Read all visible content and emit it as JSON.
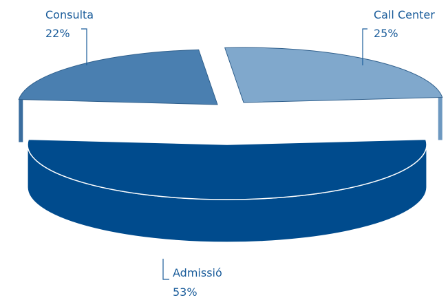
{
  "chart_data": {
    "type": "pie",
    "style": "3d-exploded",
    "slices": [
      {
        "label": "Consulta",
        "value": 22,
        "value_label": "22%",
        "color": "#4a7fb0",
        "side_color": "#3a6d9e"
      },
      {
        "label": "Call Center",
        "value": 25,
        "value_label": "25%",
        "color": "#80a8cc",
        "side_color": "#6d98c0"
      },
      {
        "label": "Admissió",
        "value": 53,
        "value_label": "53%",
        "color": "#004b8d",
        "side_color": "#004b8d"
      }
    ],
    "label_color": "#1a5c9a"
  }
}
